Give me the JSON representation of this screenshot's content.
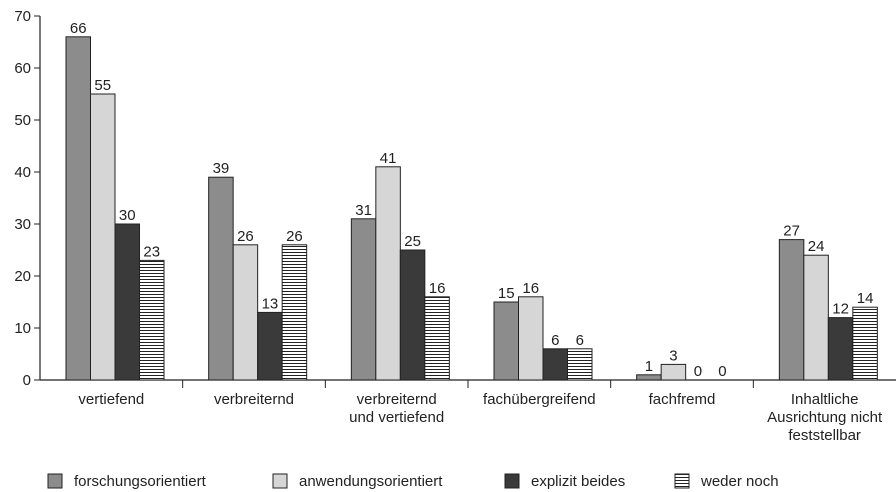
{
  "chart_data": {
    "type": "bar",
    "categories": [
      "vertiefend",
      "verbreiternd",
      "verbreiternd\nund vertiefend",
      "fachübergreifend",
      "fachfremd",
      "Inhaltliche\nAusrichtung nicht\nfeststellbar"
    ],
    "series": [
      {
        "name": "forschungsorientiert",
        "color": "#8c8c8c",
        "values": [
          66,
          39,
          31,
          15,
          1,
          27
        ]
      },
      {
        "name": "anwendungsorientiert",
        "color": "#d6d6d6",
        "values": [
          55,
          26,
          41,
          16,
          3,
          24
        ]
      },
      {
        "name": "explizit beides",
        "color": "#3a3a3a",
        "values": [
          30,
          13,
          25,
          6,
          0,
          12
        ]
      },
      {
        "name": "weder noch",
        "color": "#ffffff",
        "pattern": "horizontal-stripes",
        "values": [
          23,
          26,
          16,
          6,
          0,
          14
        ]
      }
    ],
    "ylim": [
      0,
      70
    ],
    "yticks": [
      0,
      10,
      20,
      30,
      40,
      50,
      60,
      70
    ],
    "grid": false,
    "legend": "bottom"
  }
}
